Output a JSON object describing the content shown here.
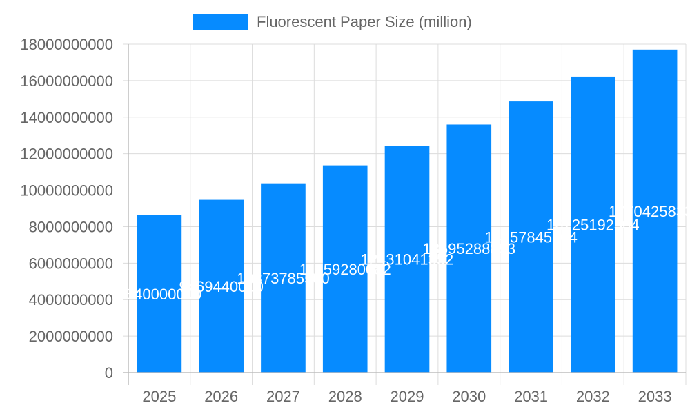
{
  "chart_data": {
    "type": "bar",
    "categories": [
      "2025",
      "2026",
      "2027",
      "2028",
      "2029",
      "2030",
      "2031",
      "2032",
      "2033"
    ],
    "series": [
      {
        "name": "Fluorescent Paper Size (million)",
        "values": [
          8640000000,
          9469440000,
          10373785500,
          11359280082,
          12431041352,
          13595288893,
          14857845504,
          16225192304,
          17704258333
        ],
        "data_labels": [
          "8640000000",
          "9469440000",
          "10373785500",
          "11359280082",
          "12431041352",
          "13595288893",
          "14857845504",
          "16225192304",
          "17704258333"
        ],
        "color": "#068bff"
      }
    ],
    "y_ticks": [
      "0",
      "2000000000",
      "4000000000",
      "6000000000",
      "8000000000",
      "10000000000",
      "12000000000",
      "14000000000",
      "16000000000",
      "18000000000"
    ],
    "ylim": [
      0,
      18000000000
    ],
    "legend_position": "top-center",
    "grid": true
  }
}
